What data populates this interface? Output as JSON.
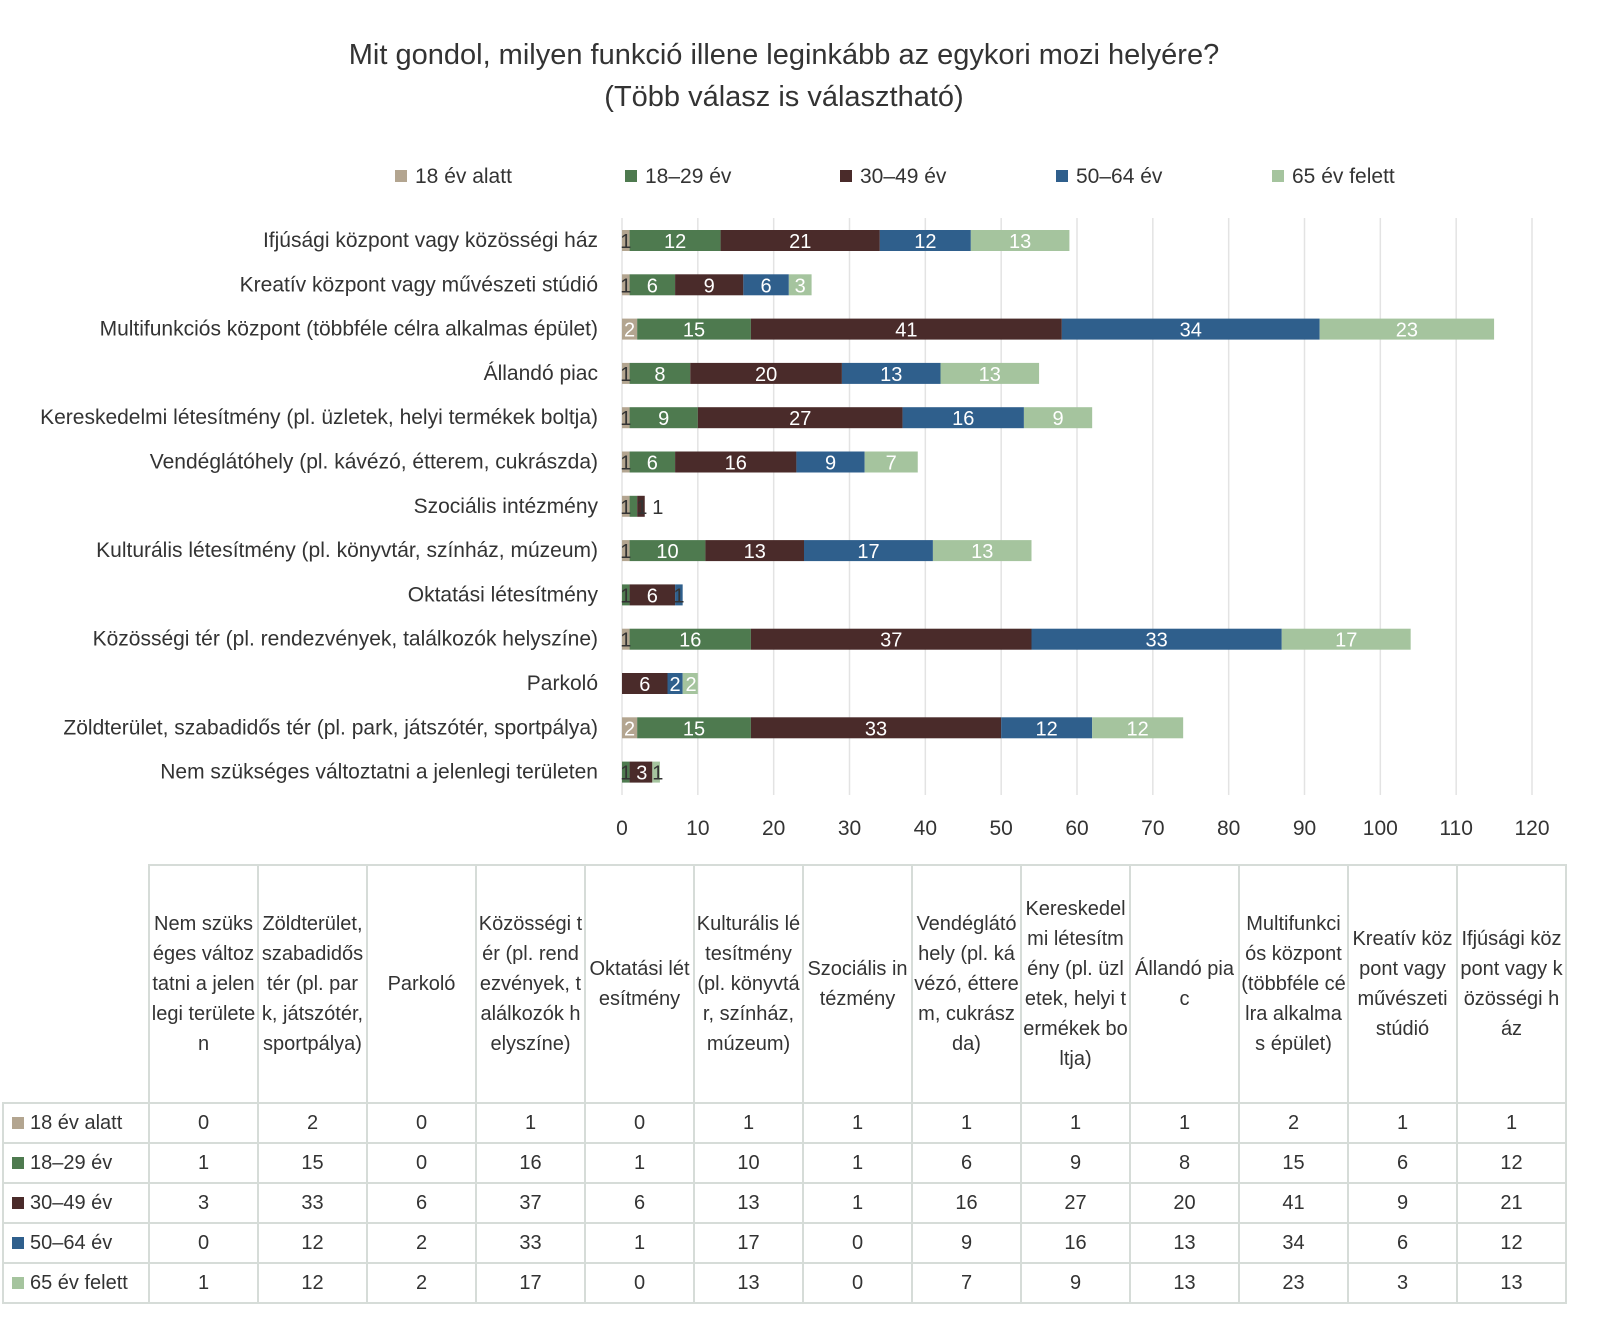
{
  "chart_data": {
    "type": "bar",
    "orientation": "horizontal-stacked",
    "title": "Mit gondol, milyen funkció illene leginkább az egykori mozi helyére?",
    "subtitle": "(Több válasz is választható)",
    "xlim": [
      0,
      120
    ],
    "xticks": [
      "0",
      "10",
      "20",
      "30",
      "40",
      "50",
      "60",
      "70",
      "80",
      "90",
      "100",
      "110",
      "120"
    ],
    "grid": true,
    "legend_position": "top",
    "categories": [
      "Nem szükséges változtatni a jelenlegi területen",
      "Zöldterület, szabadidős tér (pl. park, játszótér, sportpálya)",
      "Parkoló",
      "Közösségi tér (pl. rendezvények, találkozók helyszíne)",
      "Oktatási létesítmény",
      "Kulturális létesítmény (pl. könyvtár, színház, múzeum)",
      "Szociális intézmény",
      "Vendéglátóhely (pl. kávézó, étterem, cukrászda)",
      "Kereskedelmi létesítmény (pl. üzletek, helyi termékek boltja)",
      "Állandó piac",
      "Multifunkciós központ (többféle célra alkalmas épület)",
      "Kreatív központ vagy művészeti stúdió",
      "Ifjúsági központ vagy közösségi ház"
    ],
    "series": [
      {
        "name": "18 év alatt",
        "color": "#b3a590",
        "label_color": "#fff",
        "values": [
          0,
          2,
          0,
          1,
          0,
          1,
          1,
          1,
          1,
          1,
          2,
          1,
          1
        ]
      },
      {
        "name": "18–29 év",
        "color": "#4e7a4f",
        "label_color": "#fff",
        "values": [
          1,
          15,
          0,
          16,
          1,
          10,
          1,
          6,
          9,
          8,
          15,
          6,
          12
        ]
      },
      {
        "name": "30–49 év",
        "color": "#4a2b2a",
        "label_color": "#fff",
        "values": [
          3,
          33,
          6,
          37,
          6,
          13,
          1,
          16,
          27,
          20,
          41,
          9,
          21
        ]
      },
      {
        "name": "50–64 év",
        "color": "#2f5f8c",
        "label_color": "#fff",
        "values": [
          0,
          12,
          2,
          33,
          1,
          17,
          0,
          9,
          16,
          13,
          34,
          6,
          12
        ]
      },
      {
        "name": "65 év felett",
        "color": "#a5c49e",
        "label_color": "#fff",
        "values": [
          1,
          12,
          2,
          17,
          0,
          13,
          0,
          7,
          9,
          13,
          23,
          3,
          13
        ]
      }
    ]
  }
}
